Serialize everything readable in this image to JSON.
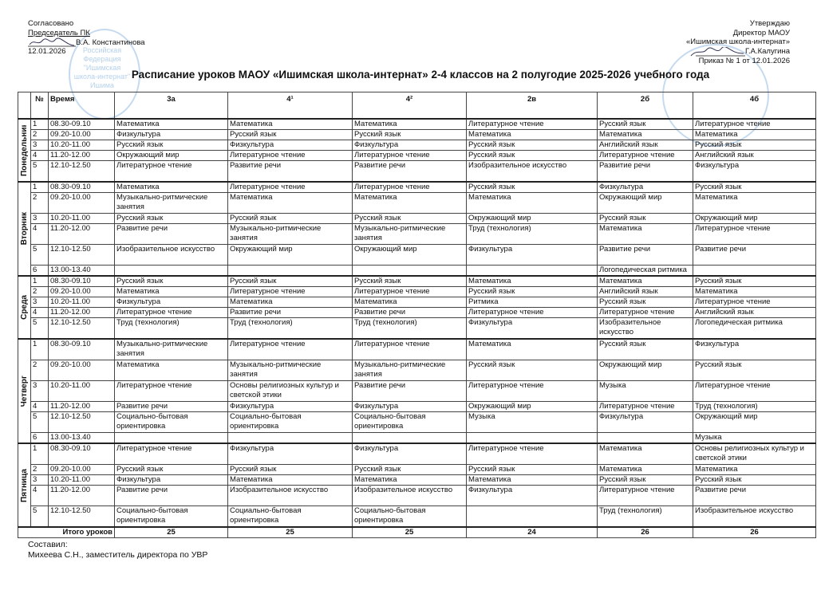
{
  "approval_left": {
    "line1": "Согласовано",
    "line2": "Председатель ПК",
    "signatory": "В.А. Константинова",
    "date": "12.01.2026"
  },
  "approval_right": {
    "line1": "Утверждаю",
    "line2": "Директор МАОУ",
    "line3": "«Ишимская школа-интернат»",
    "signatory": "Г.А.Калугина",
    "order": "Приказ № 1 от 12.01.2026"
  },
  "stamp_left_text": "Российская Федерация \"Ишимская школа-интернат\" Ишима Тюменской области",
  "title": "Расписание уроков МАОУ «Ишимская школа-интернат» 2-4 классов на 2 полугодие 2025-2026 учебного года",
  "table": {
    "headers": {
      "num": "№",
      "time": "Время",
      "classes": [
        "3а",
        "4¹",
        "4²",
        "2в",
        "2б",
        "4б"
      ]
    },
    "days": [
      {
        "name": "Понедельник",
        "rows": [
          {
            "n": "1",
            "time": "08.30-09.10",
            "cells": [
              "Математика",
              "Математика",
              "Математика",
              "Литературное чтение",
              "Русский язык",
              "Литературное чтение"
            ]
          },
          {
            "n": "2",
            "time": "09.20-10.00",
            "cells": [
              "Физкультура",
              "Русский язык",
              "Русский язык",
              "Математика",
              "Математика",
              "Математика"
            ]
          },
          {
            "n": "3",
            "time": "10.20-11.00",
            "cells": [
              "Русский язык",
              "Физкультура",
              "Физкультура",
              "Русский язык",
              "Английский язык",
              "Русский язык"
            ]
          },
          {
            "n": "4",
            "time": "11.20-12.00",
            "cells": [
              "Окружающий мир",
              "Литературное чтение",
              "Литературное чтение",
              "Русский язык",
              "Литературное чтение",
              "Английский язык"
            ]
          },
          {
            "n": "5",
            "time": "12.10-12.50",
            "cells": [
              "Литературное чтение",
              "Развитие речи",
              "Развитие речи",
              "Изобразительное искусство",
              "Развитие речи",
              "Физкультура"
            ]
          }
        ]
      },
      {
        "name": "Вторник",
        "rows": [
          {
            "n": "1",
            "time": "08.30-09.10",
            "cells": [
              "Математика",
              "Литературное чтение",
              "Литературное чтение",
              "Русский язык",
              "Физкультура",
              "Русский язык"
            ]
          },
          {
            "n": "2",
            "time": "09.20-10.00",
            "cells": [
              "Музыкально-ритмические занятия",
              "Математика",
              "Математика",
              "Математика",
              "Окружающий мир",
              "Математика"
            ]
          },
          {
            "n": "3",
            "time": "10.20-11.00",
            "cells": [
              "Русский язык",
              "Русский язык",
              "Русский язык",
              "Окружающий мир",
              "Русский язык",
              "Окружающий мир"
            ]
          },
          {
            "n": "4",
            "time": "11.20-12.00",
            "cells": [
              "Развитие речи",
              "Музыкально-ритмические занятия",
              "Музыкально-ритмические занятия",
              "Труд (технология)",
              "Математика",
              "Литературное чтение"
            ]
          },
          {
            "n": "5",
            "time": "12.10-12.50",
            "cells": [
              "Изобразительное искусство",
              "Окружающий мир",
              "Окружающий мир",
              "Физкультура",
              "Развитие речи",
              "Развитие речи"
            ]
          },
          {
            "n": "6",
            "time": "13.00-13.40",
            "cells": [
              "",
              "",
              "",
              "",
              "Логопедическая ритмика",
              ""
            ]
          }
        ]
      },
      {
        "name": "Среда",
        "rows": [
          {
            "n": "1",
            "time": "08.30-09.10",
            "cells": [
              "Русский язык",
              "Русский язык",
              "Русский язык",
              "Математика",
              "Математика",
              "Русский язык"
            ]
          },
          {
            "n": "2",
            "time": "09.20-10.00",
            "cells": [
              "Математика",
              "Литературное чтение",
              "Литературное чтение",
              "Русский язык",
              "Английский язык",
              "Математика"
            ]
          },
          {
            "n": "3",
            "time": "10.20-11.00",
            "cells": [
              "Физкультура",
              "Математика",
              "Математика",
              "Ритмика",
              "Русский язык",
              "Литературное чтение"
            ]
          },
          {
            "n": "4",
            "time": "11.20-12.00",
            "cells": [
              "Литературное чтение",
              "Развитие речи",
              "Развитие речи",
              "Литературное чтение",
              "Литературное чтение",
              "Английский язык"
            ]
          },
          {
            "n": "5",
            "time": "12.10-12.50",
            "cells": [
              "Труд (технология)",
              "Труд (технология)",
              "Труд (технология)",
              "Физкультура",
              "Изобразительное искусство",
              "Логопедическая ритмика"
            ]
          }
        ]
      },
      {
        "name": "Четверг",
        "rows": [
          {
            "n": "1",
            "time": "08.30-09.10",
            "cells": [
              "Музыкально-ритмические занятия",
              "Литературное чтение",
              "Литературное чтение",
              "Математика",
              "Русский язык",
              "Физкультура"
            ]
          },
          {
            "n": "2",
            "time": "09.20-10.00",
            "cells": [
              "Математика",
              "Музыкально-ритмические занятия",
              "Музыкально-ритмические занятия",
              "Русский язык",
              "Окружающий мир",
              "Русский язык"
            ]
          },
          {
            "n": "3",
            "time": "10.20-11.00",
            "cells": [
              "Литературное чтение",
              "Основы религиозных культур и светской этики",
              "Развитие речи",
              "Литературное чтение",
              "Музыка",
              "Литературное чтение"
            ]
          },
          {
            "n": "4",
            "time": "11.20-12.00",
            "cells": [
              "Развитие речи",
              "Физкультура",
              "Физкультура",
              "Окружающий мир",
              "Литературное чтение",
              "Труд (технология)"
            ]
          },
          {
            "n": "5",
            "time": "12.10-12.50",
            "cells": [
              "Социально-бытовая ориентировка",
              "Социально-бытовая ориентировка",
              "Социально-бытовая ориентировка",
              "Музыка",
              "Физкультура",
              "Окружающий мир"
            ]
          },
          {
            "n": "6",
            "time": "13.00-13.40",
            "cells": [
              "",
              "",
              "",
              "",
              "",
              "Музыка"
            ]
          }
        ]
      },
      {
        "name": "Пятница",
        "rows": [
          {
            "n": "1",
            "time": "08.30-09.10",
            "cells": [
              "Литературное чтение",
              "Физкультура",
              "Физкультура",
              "Литературное чтение",
              "Математика",
              "Основы религиозных культур и светской этики"
            ]
          },
          {
            "n": "2",
            "time": "09.20-10.00",
            "cells": [
              "Русский язык",
              "Русский язык",
              "Русский язык",
              "Русский язык",
              "Математика",
              "Математика"
            ]
          },
          {
            "n": "3",
            "time": "10.20-11.00",
            "cells": [
              "Физкультура",
              "Математика",
              "Математика",
              "Математика",
              "Русский язык",
              "Русский язык"
            ]
          },
          {
            "n": "4",
            "time": "11.20-12.00",
            "cells": [
              "Развитие речи",
              "Изобразительное искусство",
              "Изобразительное искусство",
              "Физкультура",
              "Литературное чтение",
              "Развитие речи"
            ]
          },
          {
            "n": "5",
            "time": "12.10-12.50",
            "cells": [
              "Социально-бытовая ориентировка",
              "Социально-бытовая ориентировка",
              "Социально-бытовая ориентировка",
              "",
              "Труд (технология)",
              "Изобразительное искусство"
            ]
          }
        ]
      }
    ],
    "total_label": "Итого уроков",
    "totals": [
      "25",
      "25",
      "25",
      "24",
      "26",
      "26"
    ]
  },
  "footer": {
    "line1": "Составил:",
    "line2": "Михеева С.Н., заместитель директора по УВР"
  }
}
